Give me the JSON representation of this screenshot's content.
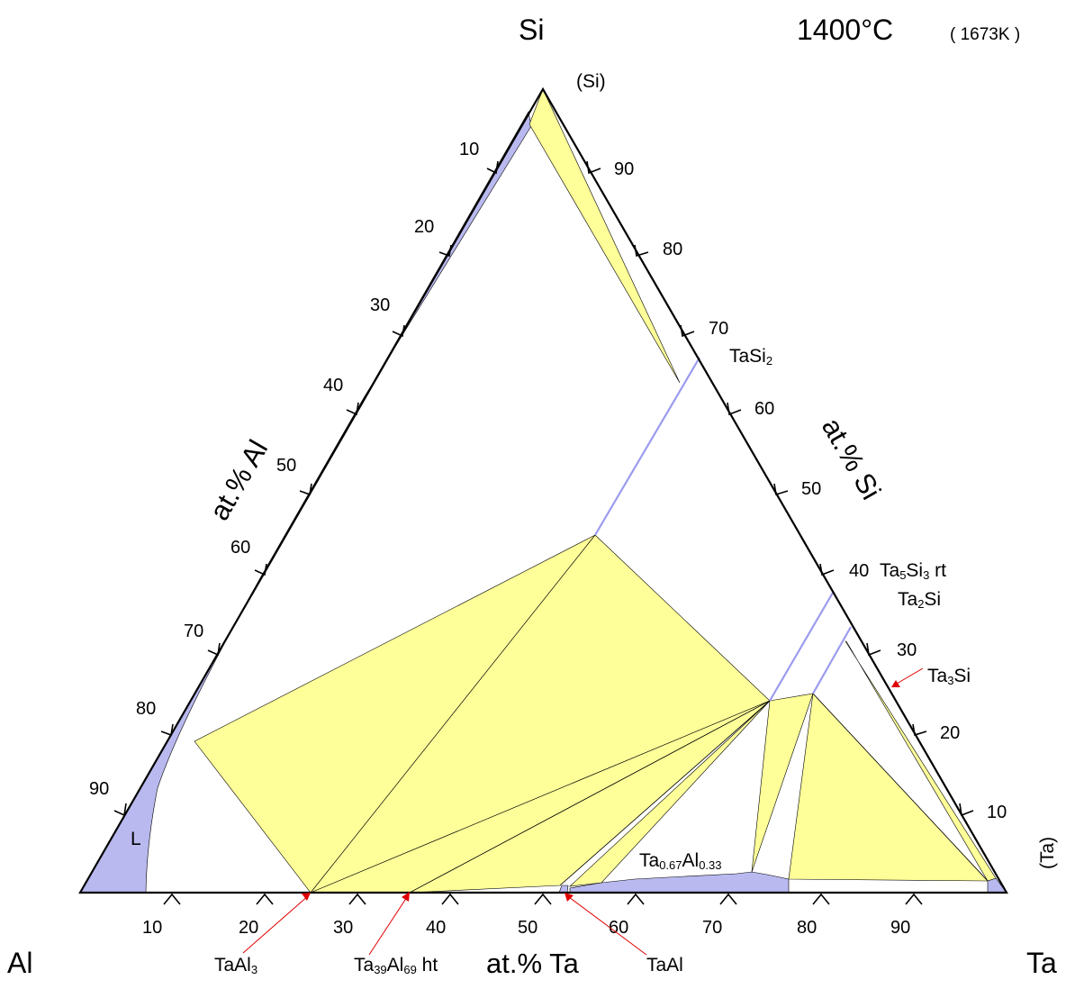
{
  "title": {
    "temperature": "1400°C",
    "kelvin": "( 1673K )"
  },
  "corners": {
    "top": "Si",
    "left": "Al",
    "right": "Ta"
  },
  "axes": {
    "left_title": "at.% Al",
    "right_title": "at.% Si",
    "bottom_title": "at.% Ta",
    "left_ticks": [
      "10",
      "20",
      "30",
      "40",
      "50",
      "60",
      "70",
      "80",
      "90"
    ],
    "right_ticks": [
      "90",
      "80",
      "70",
      "60",
      "50",
      "40",
      "30",
      "20",
      "10"
    ],
    "bottom_ticks": [
      "10",
      "20",
      "30",
      "40",
      "50",
      "60",
      "70",
      "80",
      "90"
    ]
  },
  "phases": {
    "si": "(Si)",
    "ta": "(Ta)",
    "liquid": "L",
    "tasi2_main": "TaSi",
    "tasi2_sub": "2",
    "ta5si3_a": "Ta",
    "ta5si3_b": "5",
    "ta5si3_c": "Si",
    "ta5si3_d": "3",
    "ta5si3_e": " rt",
    "ta2si_a": "Ta",
    "ta2si_b": "2",
    "ta2si_c": "Si",
    "ta3si_a": "Ta",
    "ta3si_b": "3",
    "ta3si_c": "Si",
    "taal_mid_a": "Ta",
    "taal_mid_b": "0.67",
    "taal_mid_c": "Al",
    "taal_mid_d": "0.33",
    "taal3_a": "TaAl",
    "taal3_b": "3",
    "ta39_a": "Ta",
    "ta39_b": "39",
    "ta39_c": "Al",
    "ta39_d": "69",
    "ta39_e": " ht",
    "taal": "TaAl"
  },
  "colors": {
    "two_phase": "#ffff99",
    "single_phase": "#b9b9f0",
    "arrow": "#e00000"
  }
}
